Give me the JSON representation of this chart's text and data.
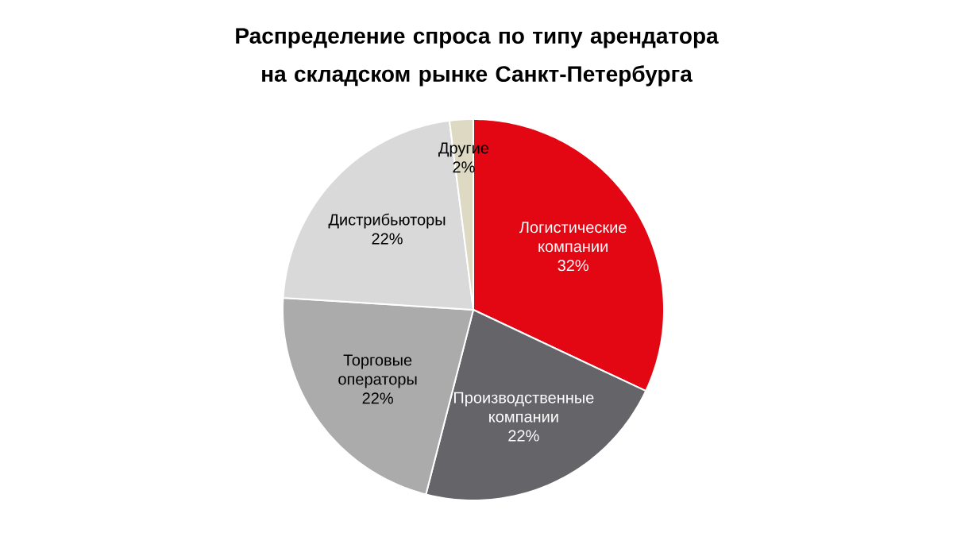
{
  "chart_data": {
    "type": "pie",
    "title": "Распределение спроса по типу арендатора на складском рынке Санкт-Петербурга",
    "categories": [
      "Логистические компании",
      "Производственные компании",
      "Торговые операторы",
      "Дистрибьюторы",
      "Другие"
    ],
    "values": [
      32,
      22,
      22,
      22,
      2
    ],
    "colors": [
      "#e30613",
      "#646469",
      "#ababab",
      "#d9d9d9",
      "#ddd9c3"
    ],
    "value_labels": [
      "32%",
      "22%",
      "22%",
      "22%",
      "2%"
    ]
  }
}
